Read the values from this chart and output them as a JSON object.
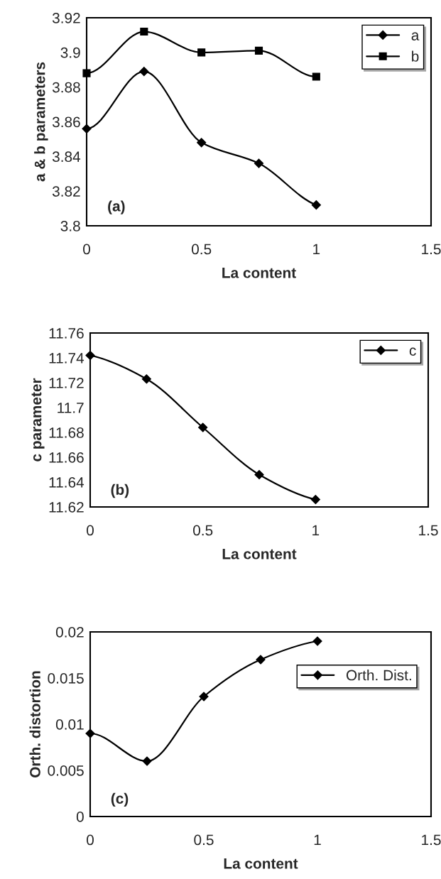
{
  "chart_data": [
    {
      "type": "line",
      "x": [
        0,
        0.25,
        0.5,
        0.75,
        1
      ],
      "xlabel": "La content",
      "ylabel": "a & b parameters",
      "xlim": [
        0,
        1.5
      ],
      "xticks": [
        0,
        0.5,
        1,
        1.5
      ],
      "ylim": [
        3.8,
        3.92
      ],
      "yticks": [
        3.8,
        3.82,
        3.84,
        3.86,
        3.88,
        3.9,
        3.92
      ],
      "legend": "top right",
      "grid": false,
      "annotations": [
        "(a)"
      ],
      "series": [
        {
          "name": "a",
          "color": "#000000",
          "marker": "diamond",
          "values": [
            3.856,
            3.889,
            3.848,
            3.836,
            3.812
          ]
        },
        {
          "name": "b",
          "color": "#000000",
          "marker": "square",
          "values": [
            3.888,
            3.912,
            3.9,
            3.901,
            3.886
          ]
        }
      ]
    },
    {
      "type": "line",
      "x": [
        0,
        0.25,
        0.5,
        0.75,
        1
      ],
      "xlabel": "La content",
      "ylabel": "c parameter",
      "xlim": [
        0,
        1.5
      ],
      "xticks": [
        0,
        0.5,
        1,
        1.5
      ],
      "ylim": [
        11.62,
        11.76
      ],
      "yticks": [
        11.62,
        11.64,
        11.66,
        11.68,
        11.7,
        11.72,
        11.74,
        11.76
      ],
      "legend": "top right",
      "grid": false,
      "annotations": [
        "(b)"
      ],
      "series": [
        {
          "name": "c",
          "color": "#000000",
          "marker": "diamond",
          "values": [
            11.742,
            11.723,
            11.684,
            11.646,
            11.626
          ]
        }
      ]
    },
    {
      "type": "line",
      "x": [
        0,
        0.25,
        0.5,
        0.75,
        1
      ],
      "xlabel": "La content",
      "ylabel": "Orth. distortion",
      "xlim": [
        0,
        1.5
      ],
      "xticks": [
        0,
        0.5,
        1,
        1.5
      ],
      "ylim": [
        0,
        0.02
      ],
      "yticks": [
        0,
        0.005,
        0.01,
        0.015,
        0.02
      ],
      "legend": "right",
      "grid": false,
      "annotations": [
        "(c)"
      ],
      "series": [
        {
          "name": "Orth. Dist.",
          "color": "#000000",
          "marker": "diamond",
          "values": [
            0.009,
            0.006,
            0.013,
            0.017,
            0.019
          ]
        }
      ]
    }
  ]
}
